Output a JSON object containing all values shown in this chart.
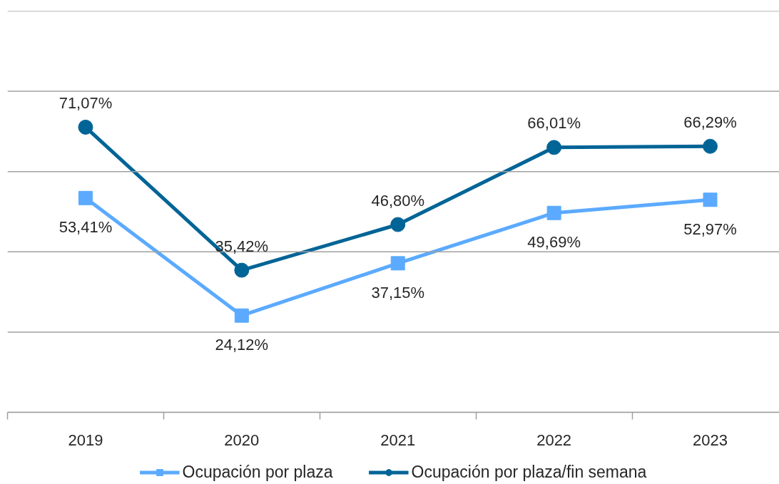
{
  "chart_data": {
    "type": "line",
    "categories": [
      "2019",
      "2020",
      "2021",
      "2022",
      "2023"
    ],
    "series": [
      {
        "name": "Ocupación por plaza",
        "color": "#5baaff",
        "marker": "square",
        "values": [
          53.41,
          24.12,
          37.15,
          49.69,
          52.97
        ],
        "value_labels": [
          "53,41%",
          "24,12%",
          "37,15%",
          "49,69%",
          "52,97%"
        ]
      },
      {
        "name": "Ocupación por plaza/fin semana",
        "color": "#006496",
        "marker": "circle",
        "values": [
          71.07,
          35.42,
          46.8,
          66.01,
          66.29
        ],
        "value_labels": [
          "71,07%",
          "35,42%",
          "46,80%",
          "66,01%",
          "66,29%"
        ]
      }
    ],
    "ylim": [
      0,
      100
    ],
    "yticks": [
      {
        "value": 0,
        "label": null
      },
      {
        "value": 20,
        "label": null
      },
      {
        "value": 40,
        "label": null
      },
      {
        "value": 60,
        "label": null
      },
      {
        "value": 80,
        "label": null
      },
      {
        "value": 100,
        "label": null
      }
    ],
    "tick_labels": "x",
    "grid": "y",
    "legend": "bottom",
    "line_style": "solid"
  }
}
